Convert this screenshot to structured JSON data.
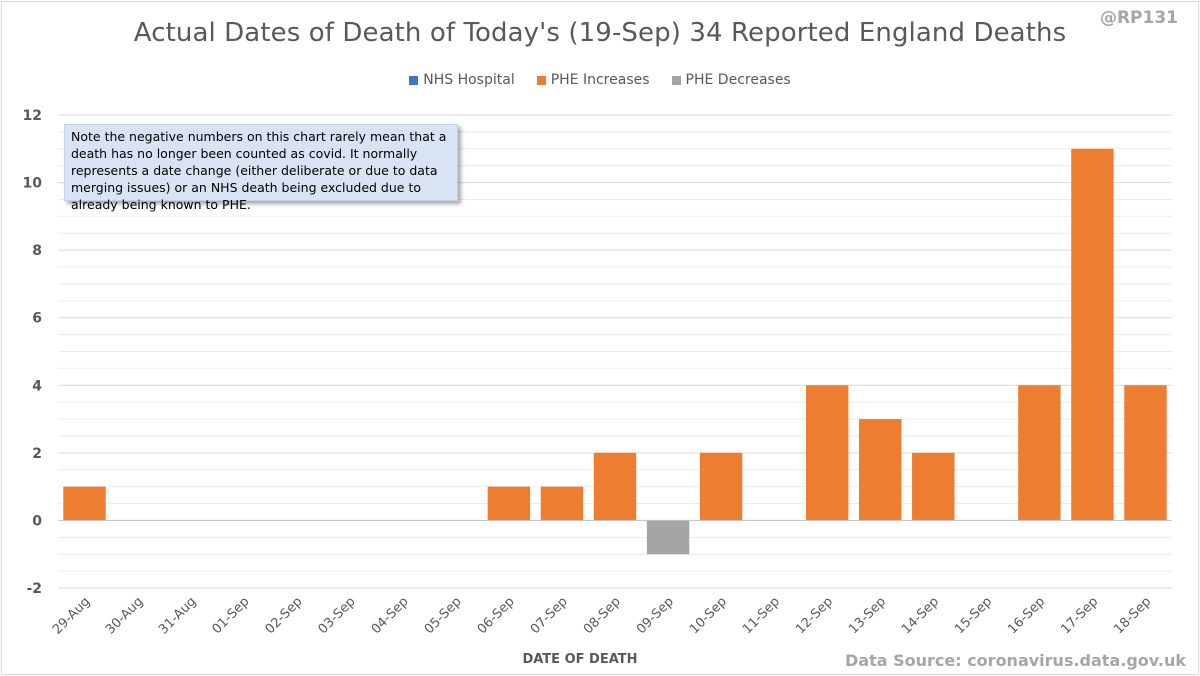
{
  "handle": "@RP131",
  "source": "Data Source: coronavirus.data.gov.uk",
  "note": "Note the negative numbers on this chart rarely mean that a death has no longer been counted as covid. It normally represents a date change (either deliberate or due to data merging issues) or an NHS death being excluded due to already being known to PHE.",
  "colors": {
    "nhs": "#4472c4",
    "phe_inc": "#ed7d31",
    "phe_dec": "#a5a5a5",
    "grid": "#d9d9d9",
    "text": "#595959"
  },
  "chart_data": {
    "type": "bar",
    "title": "Actual Dates of Death of Today's (19-Sep) 34 Reported England Deaths",
    "xlabel": "DATE OF DEATH",
    "ylabel": "",
    "ylim": [
      -2,
      12
    ],
    "yticks": [
      -2,
      0,
      2,
      4,
      6,
      8,
      10,
      12
    ],
    "categories": [
      "29-Aug",
      "30-Aug",
      "31-Aug",
      "01-Sep",
      "02-Sep",
      "03-Sep",
      "04-Sep",
      "05-Sep",
      "06-Sep",
      "07-Sep",
      "08-Sep",
      "09-Sep",
      "10-Sep",
      "11-Sep",
      "12-Sep",
      "13-Sep",
      "14-Sep",
      "15-Sep",
      "16-Sep",
      "17-Sep",
      "18-Sep"
    ],
    "stacked": true,
    "legend_position": "top",
    "series": [
      {
        "name": "NHS Hospital",
        "color": "#4472c4",
        "values": [
          0,
          0,
          0,
          0,
          0,
          0,
          0,
          0,
          0,
          0,
          0,
          0,
          0,
          0,
          0,
          0,
          0,
          0,
          0,
          0,
          0
        ]
      },
      {
        "name": "PHE Increases",
        "color": "#ed7d31",
        "values": [
          1,
          0,
          0,
          0,
          0,
          0,
          0,
          0,
          1,
          1,
          2,
          0,
          2,
          0,
          4,
          3,
          2,
          0,
          4,
          11,
          4
        ]
      },
      {
        "name": "PHE Decreases",
        "color": "#a5a5a5",
        "values": [
          0,
          0,
          0,
          0,
          0,
          0,
          0,
          0,
          0,
          0,
          0,
          -1,
          0,
          0,
          0,
          0,
          0,
          0,
          0,
          0,
          0
        ]
      }
    ]
  }
}
